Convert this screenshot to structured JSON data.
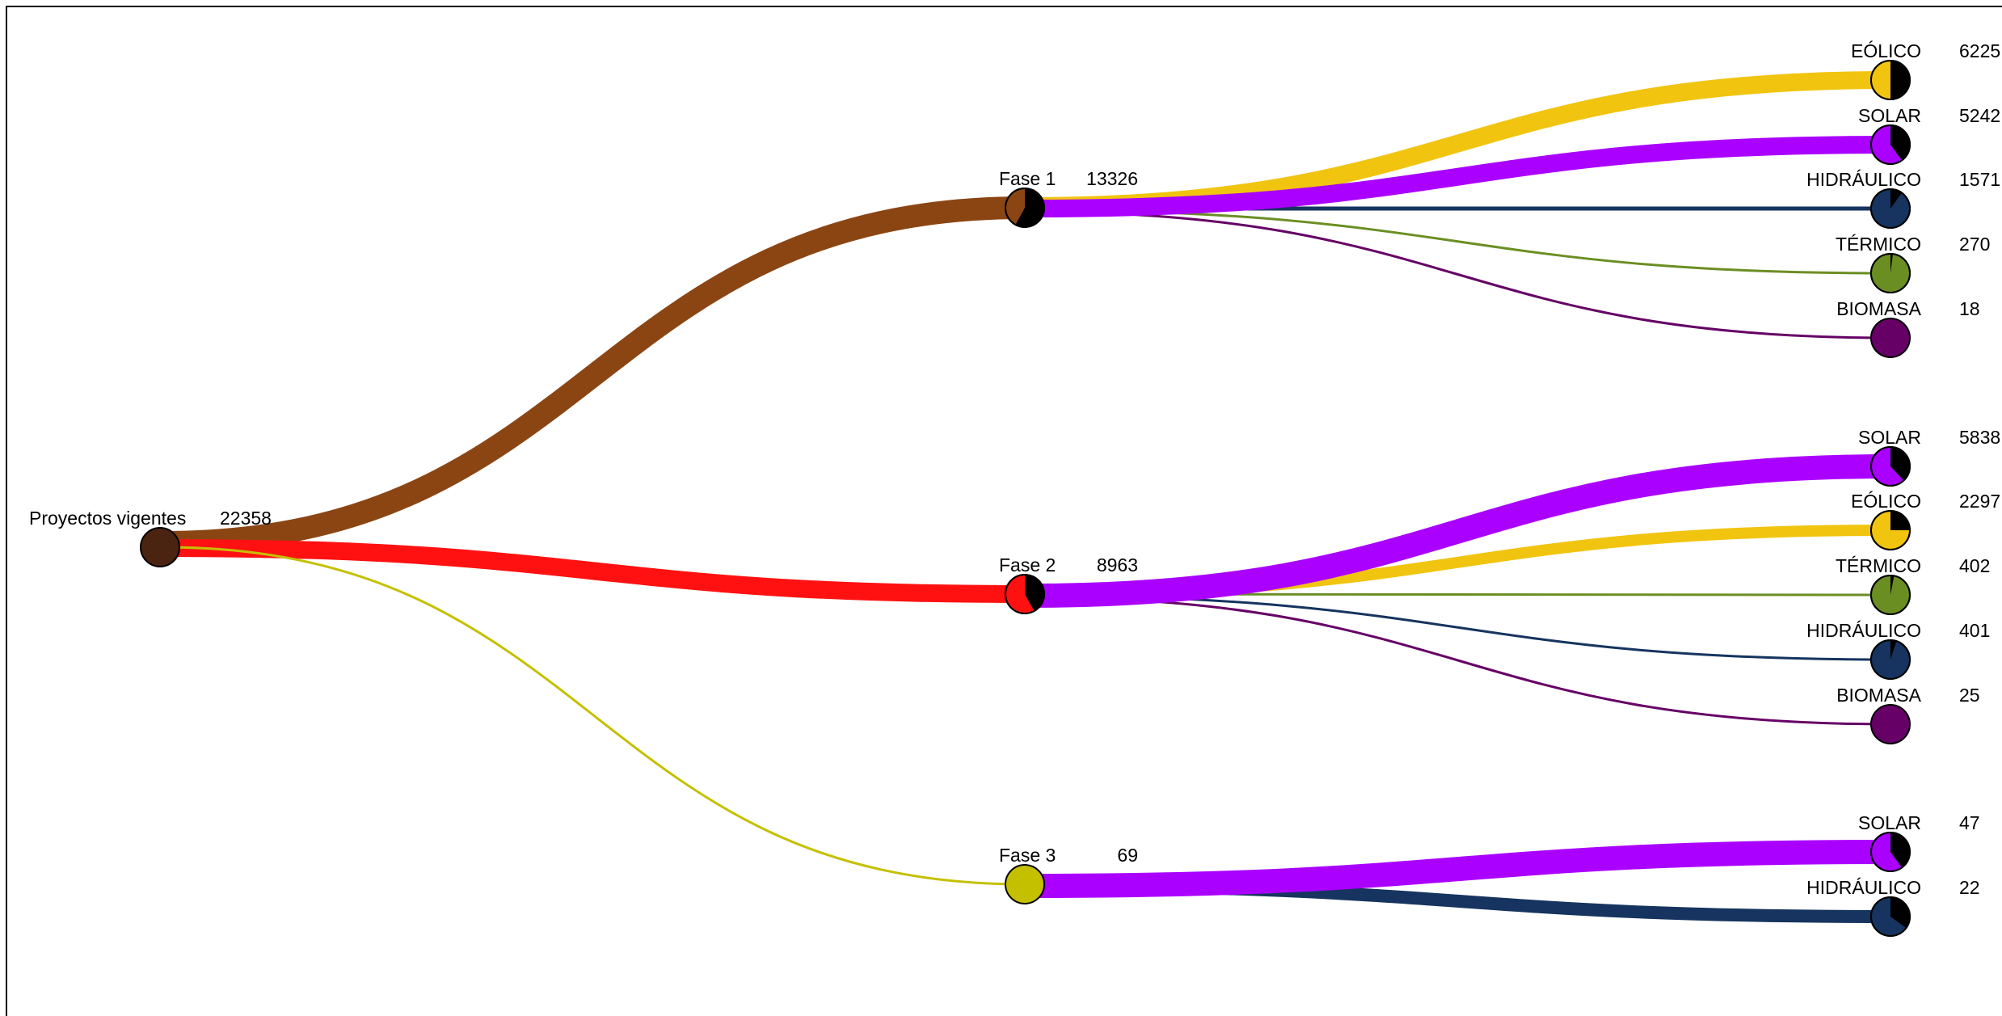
{
  "root": {
    "label": "Proyectos vigentes",
    "value": "22358",
    "color": "#4a2410"
  },
  "phases": [
    {
      "id": "fase1",
      "label": "Fase 1",
      "value": "13326",
      "color": "#8b4513",
      "pie_fraction": 0.58,
      "children": [
        {
          "label": "EÓLICO",
          "value": "6225",
          "color": "#f1c40f",
          "pie_fraction": 0.5
        },
        {
          "label": "SOLAR",
          "value": "5242",
          "color": "#aa00ff",
          "pie_fraction": 0.4
        },
        {
          "label": "HIDRÁULICO",
          "value": "1571",
          "color": "#16345f",
          "pie_fraction": 0.1
        },
        {
          "label": "TÉRMICO",
          "value": "270",
          "color": "#6b8e23",
          "pie_fraction": 0.02
        },
        {
          "label": "BIOMASA",
          "value": "18",
          "color": "#660066",
          "pie_fraction": 0.0
        }
      ]
    },
    {
      "id": "fase2",
      "label": "Fase 2",
      "value": "8963",
      "color": "#ff1111",
      "pie_fraction": 0.42,
      "children": [
        {
          "label": "SOLAR",
          "value": "5838",
          "color": "#aa00ff",
          "pie_fraction": 0.38
        },
        {
          "label": "EÓLICO",
          "value": "2297",
          "color": "#f1c40f",
          "pie_fraction": 0.25
        },
        {
          "label": "TÉRMICO",
          "value": "402",
          "color": "#6b8e23",
          "pie_fraction": 0.03
        },
        {
          "label": "HIDRÁULICO",
          "value": "401",
          "color": "#16345f",
          "pie_fraction": 0.05
        },
        {
          "label": "BIOMASA",
          "value": "25",
          "color": "#660066",
          "pie_fraction": 0.0
        }
      ]
    },
    {
      "id": "fase3",
      "label": "Fase 3",
      "value": "69",
      "color": "#c4c000",
      "pie_fraction": 0.0,
      "children": [
        {
          "label": "SOLAR",
          "value": "47",
          "color": "#aa00ff",
          "pie_fraction": 0.4
        },
        {
          "label": "HIDRÁULICO",
          "value": "22",
          "color": "#16345f",
          "pie_fraction": 0.35
        }
      ]
    }
  ]
}
